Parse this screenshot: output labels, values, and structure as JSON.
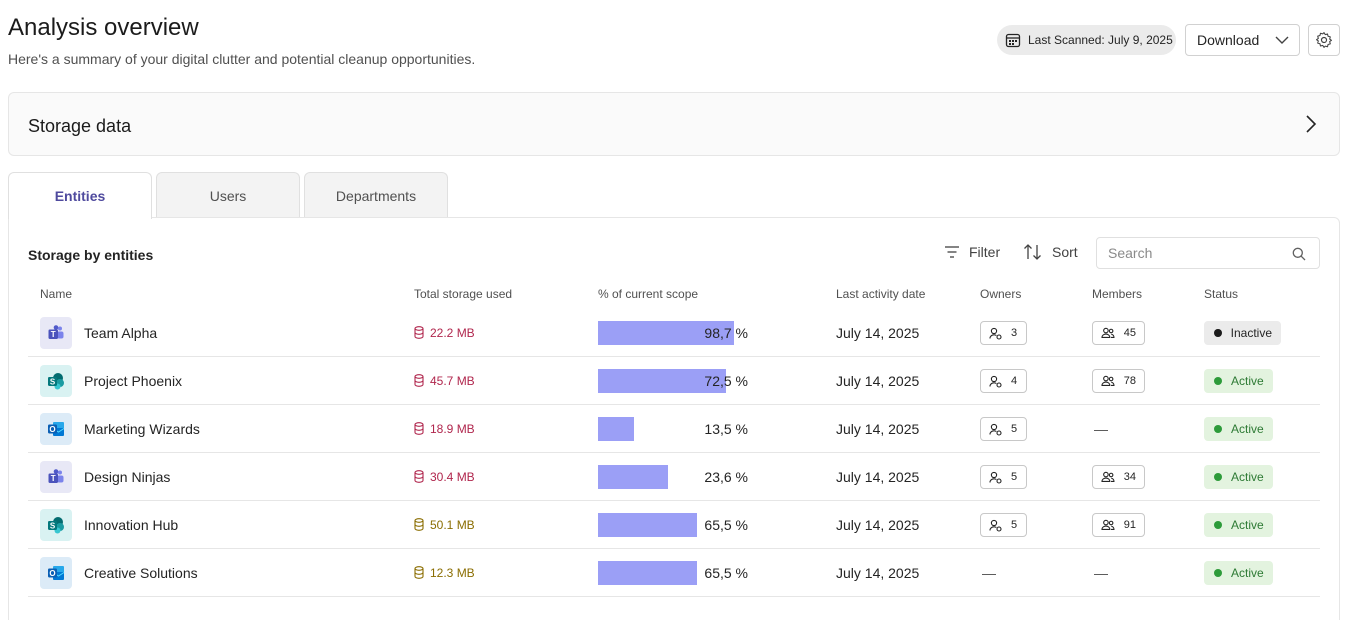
{
  "header": {
    "title": "Analysis overview",
    "subtitle": "Here's a summary of your digital clutter and potential cleanup opportunities.",
    "last_scanned": "Last Scanned: July 9, 2025",
    "download_label": "Download"
  },
  "storage_card": {
    "title": "Storage data"
  },
  "tabs": [
    {
      "label": "Entities",
      "active": true
    },
    {
      "label": "Users",
      "active": false
    },
    {
      "label": "Departments",
      "active": false
    }
  ],
  "section": {
    "title": "Storage by entities",
    "filter_label": "Filter",
    "sort_label": "Sort",
    "search_placeholder": "Search"
  },
  "columns": {
    "name": "Name",
    "storage": "Total storage used",
    "scope": "% of current scope",
    "last_activity": "Last activity date",
    "owners": "Owners",
    "members": "Members",
    "status": "Status"
  },
  "rows": [
    {
      "app": "teams-icon",
      "name": "Team Alpha",
      "storage": "22.2 MB",
      "storage_color": "#b0264d",
      "scope_fraction": 0.85,
      "pct": "98,7 %",
      "date": "July 14, 2025",
      "owners": "3",
      "members": "45",
      "status": "Inactive"
    },
    {
      "app": "sharepoint-icon",
      "name": "Project Phoenix",
      "storage": "45.7 MB",
      "storage_color": "#b0264d",
      "scope_fraction": 0.8,
      "pct": "72,5 %",
      "date": "July 14, 2025",
      "owners": "4",
      "members": "78",
      "status": "Active"
    },
    {
      "app": "outlook-icon",
      "name": "Marketing Wizards",
      "storage": "18.9 MB",
      "storage_color": "#b0264d",
      "scope_fraction": 0.225,
      "pct": "13,5 %",
      "date": "July 14, 2025",
      "owners": "5",
      "members": "—",
      "status": "Active"
    },
    {
      "app": "teams-icon",
      "name": "Design Ninjas",
      "storage": "30.4 MB",
      "storage_color": "#b0264d",
      "scope_fraction": 0.44,
      "pct": "23,6 %",
      "date": "July 14, 2025",
      "owners": "5",
      "members": "34",
      "status": "Active"
    },
    {
      "app": "sharepoint-icon",
      "name": "Innovation Hub",
      "storage": "50.1 MB",
      "storage_color": "#8a6d00",
      "scope_fraction": 0.62,
      "pct": "65,5 %",
      "date": "July 14, 2025",
      "owners": "5",
      "members": "91",
      "status": "Active"
    },
    {
      "app": "outlook-icon",
      "name": "Creative Solutions",
      "storage": "12.3 MB",
      "storage_color": "#8a6d00",
      "scope_fraction": 0.62,
      "pct": "65,5 %",
      "date": "July 14, 2025",
      "owners": "—",
      "members": "—",
      "status": "Active"
    }
  ]
}
